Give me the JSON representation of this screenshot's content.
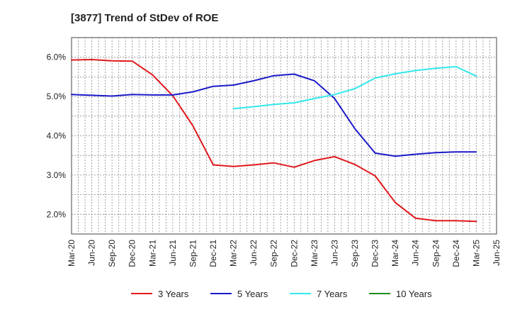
{
  "chart_data": {
    "type": "line",
    "title": "[3877]  Trend of StDev of ROE",
    "x": [
      "Mar-20",
      "Jun-20",
      "Sep-20",
      "Dec-20",
      "Mar-21",
      "Jun-21",
      "Sep-21",
      "Dec-21",
      "Mar-22",
      "Jun-22",
      "Sep-22",
      "Dec-22",
      "Mar-23",
      "Jun-23",
      "Sep-23",
      "Dec-23",
      "Mar-24",
      "Jun-24",
      "Sep-24",
      "Dec-24",
      "Mar-25",
      "Jun-25"
    ],
    "y_ticks": [
      "2.0%",
      "3.0%",
      "4.0%",
      "5.0%",
      "6.0%"
    ],
    "ylim": [
      1.5,
      6.5
    ],
    "grid": true,
    "legend_position": "bottom",
    "series": [
      {
        "name": "3 Years",
        "color": "#e0191e",
        "values": [
          5.93,
          5.94,
          5.91,
          5.9,
          5.55,
          5.02,
          4.25,
          3.26,
          3.22,
          3.26,
          3.31,
          3.2,
          3.37,
          3.47,
          3.27,
          2.98,
          2.3,
          1.9,
          1.84,
          1.84,
          1.82,
          null
        ]
      },
      {
        "name": "5 Years",
        "color": "#1a1ac8",
        "values": [
          5.05,
          5.03,
          5.01,
          5.05,
          5.04,
          5.04,
          5.12,
          5.26,
          5.29,
          5.4,
          5.53,
          5.57,
          5.4,
          4.95,
          4.18,
          3.56,
          3.48,
          3.53,
          3.57,
          3.59,
          3.59,
          null
        ]
      },
      {
        "name": "7 Years",
        "color": "#33e8ec",
        "values": [
          null,
          null,
          null,
          null,
          null,
          null,
          null,
          null,
          4.69,
          4.74,
          4.8,
          4.84,
          4.95,
          5.05,
          5.2,
          5.47,
          5.58,
          5.66,
          5.72,
          5.76,
          5.52,
          null
        ]
      },
      {
        "name": "10 Years",
        "color": "#1f8c1f",
        "values": [
          null,
          null,
          null,
          null,
          null,
          null,
          null,
          null,
          null,
          null,
          null,
          null,
          null,
          null,
          null,
          null,
          null,
          null,
          null,
          null,
          null,
          null
        ]
      }
    ]
  }
}
